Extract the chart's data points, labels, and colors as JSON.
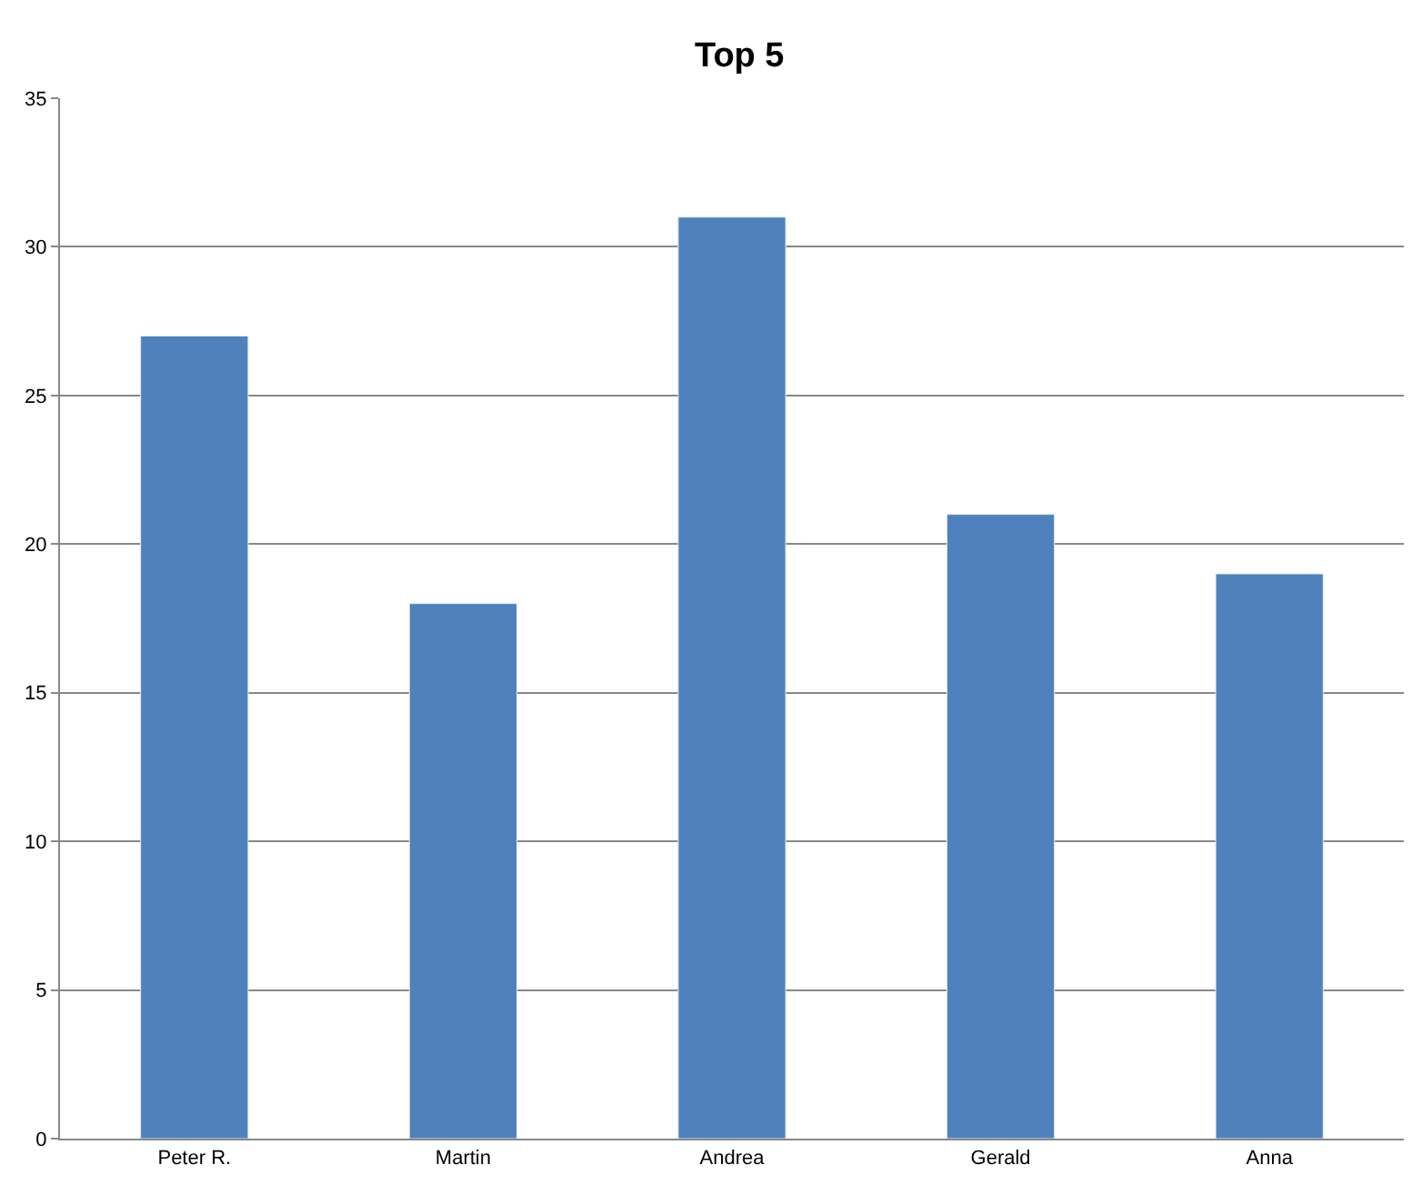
{
  "chart_data": {
    "type": "bar",
    "title": "Top 5",
    "categories": [
      "Peter R.",
      "Martin",
      "Andrea",
      "Gerald",
      "Anna"
    ],
    "values": [
      27,
      18,
      31,
      21,
      19
    ],
    "color": "#4f81bd",
    "ylim": [
      0,
      35
    ],
    "yticks": [
      0,
      5,
      10,
      15,
      20,
      25,
      30,
      35
    ],
    "grid": "y",
    "legend": false
  }
}
